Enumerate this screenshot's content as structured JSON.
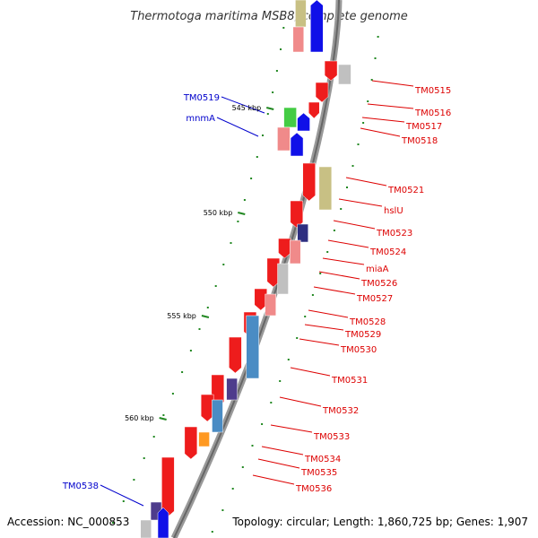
{
  "title": "Thermotoga maritima MSB8, complete genome",
  "footer": {
    "accession": "Accession: NC_000853",
    "topology": "Topology: circular; Length: 1,860,725 bp; Genes: 1,907"
  },
  "colors": {
    "red": "#ee1c1c",
    "blue": "#1010e8",
    "green": "#44cc44",
    "olive": "#c8c084",
    "pink": "#f08a8a",
    "grey": "#c0c0c0",
    "navy": "#2e2e80",
    "steel": "#4a8cc4",
    "orange": "#ff9922",
    "purple": "#4e3c8c",
    "label_red": "#dd0000",
    "label_blue": "#0000cc",
    "backbone": "#888888",
    "tick_green": "#228822"
  },
  "tick_labels": [
    {
      "text": "545 kbp"
    },
    {
      "text": "550 kbp"
    },
    {
      "text": "555 kbp"
    },
    {
      "text": "560 kbp"
    }
  ],
  "gene_labels": [
    {
      "text": "TM0515",
      "color": "red"
    },
    {
      "text": "TM0516",
      "color": "red"
    },
    {
      "text": "TM0517",
      "color": "red"
    },
    {
      "text": "TM0518",
      "color": "red"
    },
    {
      "text": "TM0521",
      "color": "red"
    },
    {
      "text": "hslU",
      "color": "red"
    },
    {
      "text": "TM0523",
      "color": "red"
    },
    {
      "text": "TM0524",
      "color": "red"
    },
    {
      "text": "miaA",
      "color": "red"
    },
    {
      "text": "TM0526",
      "color": "red"
    },
    {
      "text": "TM0527",
      "color": "red"
    },
    {
      "text": "TM0528",
      "color": "red"
    },
    {
      "text": "TM0529",
      "color": "red"
    },
    {
      "text": "TM0530",
      "color": "red"
    },
    {
      "text": "TM0531",
      "color": "red"
    },
    {
      "text": "TM0532",
      "color": "red"
    },
    {
      "text": "TM0533",
      "color": "red"
    },
    {
      "text": "TM0534",
      "color": "red"
    },
    {
      "text": "TM0535",
      "color": "red"
    },
    {
      "text": "TM0536",
      "color": "red"
    },
    {
      "text": "TM0519",
      "color": "blue"
    },
    {
      "text": "mnmA",
      "color": "blue"
    },
    {
      "text": "TM0538",
      "color": "blue"
    }
  ]
}
